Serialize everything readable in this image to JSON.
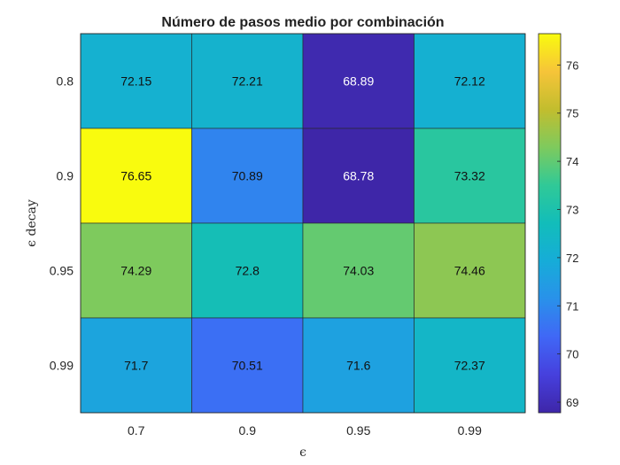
{
  "chart_data": {
    "type": "heatmap",
    "title": "Número de pasos medio por combinación",
    "xlabel": "ϵ",
    "ylabel": "ϵ decay",
    "x_categories": [
      "0.7",
      "0.9",
      "0.95",
      "0.99"
    ],
    "y_categories": [
      "0.8",
      "0.9",
      "0.95",
      "0.99"
    ],
    "values": [
      [
        72.15,
        72.21,
        68.89,
        72.12
      ],
      [
        76.65,
        70.89,
        68.78,
        73.32
      ],
      [
        74.29,
        72.8,
        74.03,
        74.46
      ],
      [
        71.7,
        70.51,
        71.6,
        72.37
      ]
    ],
    "value_labels": [
      [
        "72.15",
        "72.21",
        "68.89",
        "72.12"
      ],
      [
        "76.65",
        "70.89",
        "68.78",
        "73.32"
      ],
      [
        "74.29",
        "72.8",
        "74.03",
        "74.46"
      ],
      [
        "71.7",
        "70.51",
        "71.6",
        "72.37"
      ]
    ],
    "colorbar": {
      "min": 68.78,
      "max": 76.65,
      "ticks": [
        "69",
        "70",
        "71",
        "72",
        "73",
        "74",
        "75",
        "76"
      ],
      "colormap": "parula"
    },
    "grid": false
  }
}
